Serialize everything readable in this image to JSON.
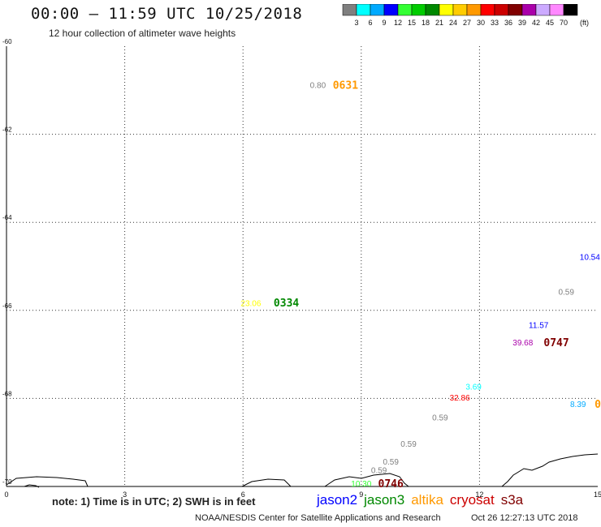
{
  "header": {
    "title": "00:00 – 11:59 UTC 10/25/2018",
    "subtitle": "12 hour collection of altimeter wave heights"
  },
  "colorbar": {
    "unit_label": "(ft)",
    "ticks": [
      "3",
      "6",
      "9",
      "12",
      "15",
      "18",
      "21",
      "24",
      "27",
      "30",
      "33",
      "36",
      "39",
      "42",
      "45",
      "70"
    ],
    "colors": [
      "#7f7f7f",
      "#00ffff",
      "#00aaff",
      "#0000ff",
      "#33ff33",
      "#00cc00",
      "#008800",
      "#ffff00",
      "#ffcc00",
      "#ff9900",
      "#ff0000",
      "#cc0000",
      "#800000",
      "#aa00aa",
      "#ccaaff",
      "#ff88ff",
      "#000000"
    ]
  },
  "chart_data": {
    "type": "scatter",
    "title": "00:00 – 11:59 UTC 10/25/2018",
    "subtitle": "12 hour collection of altimeter wave heights",
    "x_ticks": [
      "0",
      "3",
      "6",
      "9",
      "12",
      "15"
    ],
    "y_ticks": [
      "-60",
      "-62",
      "-64",
      "-66",
      "-68",
      "-70"
    ],
    "xlim": [
      0,
      15
    ],
    "ylim": [
      -70,
      -60
    ],
    "grid": true,
    "points": [
      {
        "x": 7.9,
        "y": -60.9,
        "label": "0.80",
        "color": "#7f7f7f"
      },
      {
        "x": 8.6,
        "y": -60.9,
        "label": "0631",
        "color": "#ff9900",
        "kind": "time"
      },
      {
        "x": 6.2,
        "y": -65.85,
        "label": "23.06",
        "color": "#ffff00"
      },
      {
        "x": 7.1,
        "y": -65.85,
        "label": "0334",
        "color": "#008800",
        "kind": "time"
      },
      {
        "x": 14.8,
        "y": -64.8,
        "label": "10.54",
        "color": "#0000ff"
      },
      {
        "x": 14.2,
        "y": -65.6,
        "label": "0.59",
        "color": "#7f7f7f"
      },
      {
        "x": 13.5,
        "y": -66.35,
        "label": "11.57",
        "color": "#0000ff"
      },
      {
        "x": 13.1,
        "y": -66.75,
        "label": "39.68",
        "color": "#aa00aa"
      },
      {
        "x": 13.95,
        "y": -66.75,
        "label": "0747",
        "color": "#800000",
        "kind": "time"
      },
      {
        "x": 11.85,
        "y": -67.75,
        "label": "3.69",
        "color": "#00ffff"
      },
      {
        "x": 11.5,
        "y": -68.0,
        "label": "32.86",
        "color": "#ff0000"
      },
      {
        "x": 14.5,
        "y": -68.15,
        "label": "8.39",
        "color": "#00aaff"
      },
      {
        "x": 15.0,
        "y": -68.15,
        "label": "0",
        "color": "#ff9900",
        "kind": "time"
      },
      {
        "x": 11.0,
        "y": -68.45,
        "label": "0.59",
        "color": "#7f7f7f"
      },
      {
        "x": 10.2,
        "y": -69.05,
        "label": "0.59",
        "color": "#7f7f7f"
      },
      {
        "x": 9.75,
        "y": -69.45,
        "label": "0.59",
        "color": "#7f7f7f"
      },
      {
        "x": 9.45,
        "y": -69.65,
        "label": "0.59",
        "color": "#7f7f7f"
      },
      {
        "x": 9.0,
        "y": -69.95,
        "label": "10.30",
        "color": "#33ff33"
      },
      {
        "x": 9.75,
        "y": -69.95,
        "label": "0746",
        "color": "#800000",
        "kind": "time"
      }
    ]
  },
  "footer": {
    "note": "note: 1) Time is in UTC; 2) SWH is in feet",
    "satellites": [
      {
        "name": "jason2",
        "color": "#0000ff"
      },
      {
        "name": "jason3",
        "color": "#008800"
      },
      {
        "name": "altika",
        "color": "#ff9900"
      },
      {
        "name": "cryosat",
        "color": "#cc0000"
      },
      {
        "name": "s3a",
        "color": "#800000"
      }
    ],
    "credit": "NOAA/NESDIS Center for Satellite Applications and Research",
    "timestamp": "Oct 26 12:27:13 UTC 2018"
  }
}
